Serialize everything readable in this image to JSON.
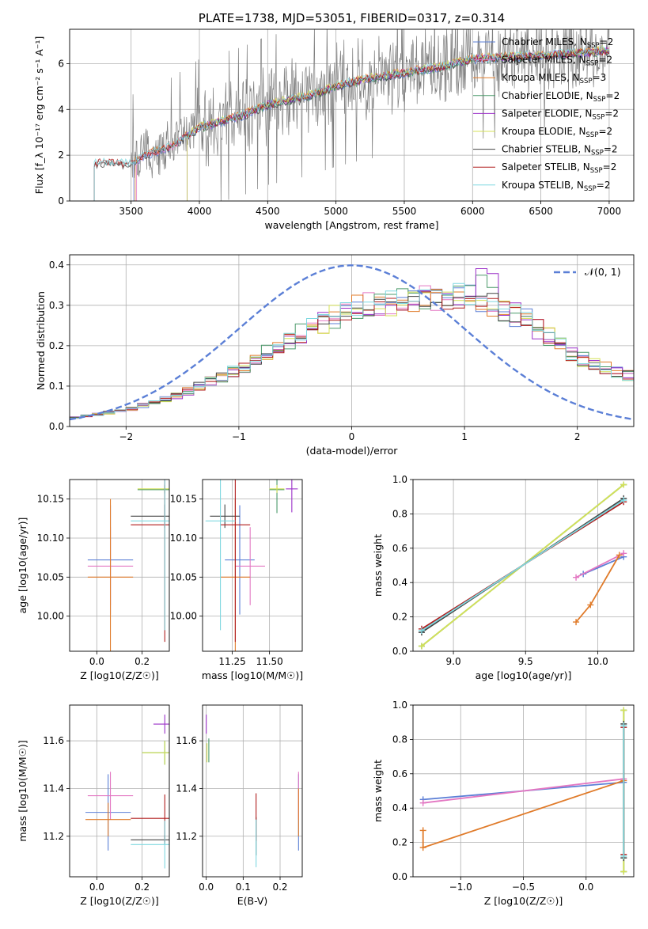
{
  "colors": {
    "chabrier_miles": "#5b7fd6",
    "salpeter_miles": "#e377c2",
    "kroupa_miles": "#e07b2a",
    "chabrier_elodie": "#4a9a6a",
    "salpeter_elodie": "#9b30c8",
    "kroupa_elodie": "#d4e157",
    "chabrier_stelib": "#444444",
    "salpeter_stelib": "#b01c1c",
    "kroupa_stelib": "#7fd8e0",
    "gaussian": "#5b7fd6",
    "spectrum": "#7f7f7f"
  },
  "chart_data": [
    {
      "id": "spectrum",
      "type": "line",
      "title": "PLATE=1738, MJD=53051, FIBERID=0317, z=0.314",
      "xlabel": "wavelength [Angstrom, rest frame]",
      "ylabel": "Flux [f_λ 10⁻¹⁷ erg cm⁻² s⁻¹ A⁻¹]",
      "xlim": [
        3050,
        7180
      ],
      "ylim": [
        0,
        7.5
      ],
      "xticks": [
        3500,
        4000,
        4500,
        5000,
        5500,
        6000,
        6500,
        7000
      ],
      "yticks": [
        0,
        2,
        4,
        6
      ],
      "grid": true,
      "legend_position": "top-right",
      "data_profile": {
        "x": [
          3200,
          3300,
          3500,
          3600,
          3800,
          4000,
          4300,
          4500,
          4800,
          5000,
          5200,
          5500,
          5800,
          6000,
          6300,
          6600,
          6900,
          7000
        ],
        "y": [
          1.6,
          1.7,
          1.6,
          2.0,
          2.4,
          3.2,
          3.7,
          4.2,
          4.6,
          5.0,
          5.3,
          5.6,
          5.9,
          6.2,
          6.3,
          6.4,
          6.5,
          6.6
        ]
      },
      "series": [
        {
          "key": "chabrier_miles",
          "label": "Chabrier MILES, N",
          "sub": "SSP",
          "tail": "=2"
        },
        {
          "key": "salpeter_miles",
          "label": "Salpeter MILES, N",
          "sub": "SSP",
          "tail": "=2"
        },
        {
          "key": "kroupa_miles",
          "label": "Kroupa MILES, N",
          "sub": "SSP",
          "tail": "=3"
        },
        {
          "key": "chabrier_elodie",
          "label": "Chabrier ELODIE, N",
          "sub": "SSP",
          "tail": "=2"
        },
        {
          "key": "salpeter_elodie",
          "label": "Salpeter ELODIE, N",
          "sub": "SSP",
          "tail": "=2"
        },
        {
          "key": "kroupa_elodie",
          "label": "Kroupa ELODIE, N",
          "sub": "SSP",
          "tail": "=2"
        },
        {
          "key": "chabrier_stelib",
          "label": "Chabrier STELIB, N",
          "sub": "SSP",
          "tail": "=2"
        },
        {
          "key": "salpeter_stelib",
          "label": "Salpeter STELIB, N",
          "sub": "SSP",
          "tail": "=2"
        },
        {
          "key": "kroupa_stelib",
          "label": "Kroupa STELIB, N",
          "sub": "SSP",
          "tail": "=2"
        }
      ]
    },
    {
      "id": "residuals",
      "type": "line",
      "xlabel": "(data-model)/error",
      "ylabel": "Normed distribution",
      "xlim": [
        -2.5,
        2.5
      ],
      "ylim": [
        0,
        0.425
      ],
      "xticks": [
        -2,
        -1,
        0,
        1,
        2
      ],
      "yticks": [
        0.0,
        0.1,
        0.2,
        0.3,
        0.4
      ],
      "grid": true,
      "legend_position": "top-right",
      "gaussian_label": "𝒩(0, 1)",
      "hist_profile": {
        "x": [
          -2.5,
          -2.0,
          -1.5,
          -1.0,
          -0.5,
          0.0,
          0.5,
          1.0,
          1.5,
          2.0,
          2.5
        ],
        "y": [
          0.02,
          0.04,
          0.08,
          0.14,
          0.22,
          0.29,
          0.31,
          0.32,
          0.27,
          0.17,
          0.12
        ]
      }
    },
    {
      "id": "age_vs_Z",
      "type": "scatter",
      "xlabel": "Z [log10(Z/Z☉)]",
      "ylabel": "age  [log10(age/yr)]",
      "xlim": [
        -0.12,
        0.32
      ],
      "ylim": [
        9.955,
        10.175
      ],
      "xticks": [
        0.0,
        0.2
      ],
      "yticks": [
        10.0,
        10.05,
        10.1,
        10.15
      ],
      "grid": true,
      "points": [
        {
          "key": "chabrier_miles",
          "x": 0.06,
          "y": 10.072,
          "xerr": 0.1,
          "yerr": 0.07
        },
        {
          "key": "salpeter_miles",
          "x": 0.06,
          "y": 10.064,
          "xerr": 0.1,
          "yerr": 0.05
        },
        {
          "key": "kroupa_miles",
          "x": 0.06,
          "y": 10.05,
          "xerr": 0.1,
          "yerr": 0.1
        },
        {
          "key": "chabrier_elodie",
          "x": 0.3,
          "y": 10.162,
          "xerr": 0.12,
          "yerr": 0.005
        },
        {
          "key": "salpeter_elodie",
          "x": 0.3,
          "y": 10.163,
          "xerr": 0.005,
          "yerr": 0.005
        },
        {
          "key": "kroupa_elodie",
          "x": 0.3,
          "y": 10.163,
          "xerr": 0.12,
          "yerr": 0.005
        },
        {
          "key": "chabrier_stelib",
          "x": 0.3,
          "y": 10.128,
          "xerr": 0.15,
          "yerr": 0.015
        },
        {
          "key": "salpeter_stelib",
          "x": 0.3,
          "y": 10.117,
          "xerr": 0.15,
          "yerr": 0.15
        },
        {
          "key": "kroupa_stelib",
          "x": 0.3,
          "y": 10.122,
          "xerr": 0.15,
          "yerr": 0.14
        }
      ]
    },
    {
      "id": "age_vs_mass",
      "type": "scatter",
      "xlabel": "mass [log10(M/M☉)]",
      "ylabel": "",
      "xlim": [
        11.05,
        11.72
      ],
      "ylim": [
        9.955,
        10.175
      ],
      "xticks": [
        11.25,
        11.5
      ],
      "yticks": [
        10.0,
        10.05,
        10.1,
        10.15
      ],
      "grid": true,
      "points": [
        {
          "key": "chabrier_miles",
          "x": 11.3,
          "y": 10.072,
          "xerr": 0.1,
          "yerr": 0.07
        },
        {
          "key": "salpeter_miles",
          "x": 11.37,
          "y": 10.064,
          "xerr": 0.1,
          "yerr": 0.05
        },
        {
          "key": "kroupa_miles",
          "x": 11.27,
          "y": 10.05,
          "xerr": 0.1,
          "yerr": 0.1
        },
        {
          "key": "chabrier_elodie",
          "x": 11.55,
          "y": 10.162,
          "xerr": 0.05,
          "yerr": 0.03
        },
        {
          "key": "salpeter_elodie",
          "x": 11.65,
          "y": 10.163,
          "xerr": 0.04,
          "yerr": 0.03
        },
        {
          "key": "kroupa_elodie",
          "x": 11.55,
          "y": 10.163,
          "xerr": 0.05,
          "yerr": 0.005
        },
        {
          "key": "chabrier_stelib",
          "x": 11.2,
          "y": 10.128,
          "xerr": 0.1,
          "yerr": 0.015
        },
        {
          "key": "salpeter_stelib",
          "x": 11.27,
          "y": 10.117,
          "xerr": 0.1,
          "yerr": 0.15
        },
        {
          "key": "kroupa_stelib",
          "x": 11.17,
          "y": 10.122,
          "xerr": 0.1,
          "yerr": 0.14
        }
      ]
    },
    {
      "id": "massweight_vs_age",
      "type": "line",
      "xlabel": "age  [log10(age/yr)]",
      "ylabel": "mass weight",
      "xlim": [
        8.72,
        10.25
      ],
      "ylim": [
        0,
        1.0
      ],
      "xticks": [
        9.0,
        9.5,
        10.0
      ],
      "yticks": [
        0.0,
        0.2,
        0.4,
        0.6,
        0.8,
        1.0
      ],
      "grid": true,
      "series": [
        {
          "key": "chabrier_elodie",
          "x": [
            8.78,
            10.18
          ],
          "y": [
            0.03,
            0.97
          ]
        },
        {
          "key": "kroupa_elodie",
          "x": [
            8.78,
            10.18
          ],
          "y": [
            0.03,
            0.97
          ]
        },
        {
          "key": "chabrier_stelib",
          "x": [
            8.78,
            10.18
          ],
          "y": [
            0.11,
            0.89
          ]
        },
        {
          "key": "salpeter_stelib",
          "x": [
            8.78,
            10.18
          ],
          "y": [
            0.13,
            0.87
          ]
        },
        {
          "key": "kroupa_stelib",
          "x": [
            8.78,
            10.18
          ],
          "y": [
            0.12,
            0.88
          ]
        },
        {
          "key": "chabrier_miles",
          "x": [
            9.9,
            10.18
          ],
          "y": [
            0.45,
            0.55
          ]
        },
        {
          "key": "salpeter_miles",
          "x": [
            9.85,
            10.18
          ],
          "y": [
            0.43,
            0.57
          ]
        },
        {
          "key": "kroupa_miles",
          "x": [
            9.85,
            9.95,
            10.15
          ],
          "y": [
            0.17,
            0.27,
            0.56
          ]
        }
      ]
    },
    {
      "id": "mass_vs_Z",
      "type": "scatter",
      "xlabel": "Z [log10(Z/Z☉)]",
      "ylabel": "mass [log10(M/M☉)]",
      "xlim": [
        -0.12,
        0.32
      ],
      "ylim": [
        11.03,
        11.75
      ],
      "xticks": [
        0.0,
        0.2
      ],
      "yticks": [
        11.2,
        11.4,
        11.6
      ],
      "grid": true,
      "points": [
        {
          "key": "chabrier_miles",
          "x": 0.05,
          "y": 11.3,
          "xerr": 0.1,
          "yerr": 0.16
        },
        {
          "key": "salpeter_miles",
          "x": 0.06,
          "y": 11.37,
          "xerr": 0.1,
          "yerr": 0.1
        },
        {
          "key": "kroupa_miles",
          "x": 0.05,
          "y": 11.27,
          "xerr": 0.1,
          "yerr": 0.07
        },
        {
          "key": "chabrier_elodie",
          "x": 0.3,
          "y": 11.55,
          "xerr": 0.1,
          "yerr": 0.05
        },
        {
          "key": "salpeter_elodie",
          "x": 0.3,
          "y": 11.67,
          "xerr": 0.05,
          "yerr": 0.04
        },
        {
          "key": "kroupa_elodie",
          "x": 0.3,
          "y": 11.55,
          "xerr": 0.1,
          "yerr": 0.05
        },
        {
          "key": "chabrier_stelib",
          "x": 0.3,
          "y": 11.185,
          "xerr": 0.15,
          "yerr": 0.02
        },
        {
          "key": "salpeter_stelib",
          "x": 0.3,
          "y": 11.275,
          "xerr": 0.15,
          "yerr": 0.1
        },
        {
          "key": "kroupa_stelib",
          "x": 0.3,
          "y": 11.165,
          "xerr": 0.15,
          "yerr": 0.1
        }
      ]
    },
    {
      "id": "mass_vs_ebv",
      "type": "scatter",
      "xlabel": "E(B-V)",
      "ylabel": "",
      "xlim": [
        -0.01,
        0.26
      ],
      "ylim": [
        11.03,
        11.75
      ],
      "xticks": [
        0.0,
        0.1,
        0.2
      ],
      "yticks": [
        11.2,
        11.4,
        11.6
      ],
      "grid": true,
      "points": [
        {
          "key": "chabrier_miles",
          "x": 0.25,
          "y": 11.3,
          "xerr": 0,
          "yerr": 0.16
        },
        {
          "key": "salpeter_miles",
          "x": 0.25,
          "y": 11.37,
          "xerr": 0,
          "yerr": 0.1
        },
        {
          "key": "kroupa_miles",
          "x": 0.25,
          "y": 11.3,
          "xerr": 0,
          "yerr": 0.1
        },
        {
          "key": "chabrier_elodie",
          "x": 0.007,
          "y": 11.56,
          "xerr": 0,
          "yerr": 0.05
        },
        {
          "key": "salpeter_elodie",
          "x": 0.0,
          "y": 11.67,
          "xerr": 0,
          "yerr": 0.04
        },
        {
          "key": "kroupa_elodie",
          "x": 0.002,
          "y": 11.55,
          "xerr": 0,
          "yerr": 0.04
        },
        {
          "key": "chabrier_stelib",
          "x": 0.135,
          "y": 11.2,
          "xerr": 0,
          "yerr": 0.08
        },
        {
          "key": "salpeter_stelib",
          "x": 0.135,
          "y": 11.28,
          "xerr": 0,
          "yerr": 0.1
        },
        {
          "key": "kroupa_stelib",
          "x": 0.135,
          "y": 11.17,
          "xerr": 0,
          "yerr": 0.1
        }
      ]
    },
    {
      "id": "massweight_vs_Z",
      "type": "line",
      "xlabel": "Z [log10(Z/Z☉)]",
      "ylabel": "mass weight",
      "xlim": [
        -1.38,
        0.38
      ],
      "ylim": [
        0,
        1.0
      ],
      "xticks": [
        -1.0,
        -0.5,
        0.0
      ],
      "yticks": [
        0.0,
        0.2,
        0.4,
        0.6,
        0.8,
        1.0
      ],
      "grid": true,
      "series": [
        {
          "key": "chabrier_miles",
          "x": [
            -1.3,
            0.3
          ],
          "y": [
            0.45,
            0.55
          ]
        },
        {
          "key": "salpeter_miles",
          "x": [
            -1.3,
            0.3
          ],
          "y": [
            0.43,
            0.57
          ]
        },
        {
          "key": "kroupa_miles",
          "x": [
            -1.3,
            -1.3,
            0.3
          ],
          "y": [
            0.27,
            0.17,
            0.56
          ]
        },
        {
          "key": "chabrier_elodie",
          "x": [
            0.3,
            0.3
          ],
          "y": [
            0.03,
            0.97
          ]
        },
        {
          "key": "kroupa_elodie",
          "x": [
            0.3,
            0.3
          ],
          "y": [
            0.03,
            0.97
          ]
        },
        {
          "key": "chabrier_stelib",
          "x": [
            0.3,
            0.3
          ],
          "y": [
            0.11,
            0.89
          ]
        },
        {
          "key": "salpeter_stelib",
          "x": [
            0.3,
            0.3
          ],
          "y": [
            0.13,
            0.87
          ]
        },
        {
          "key": "kroupa_stelib",
          "x": [
            0.3,
            0.3
          ],
          "y": [
            0.12,
            0.88
          ]
        }
      ]
    }
  ]
}
